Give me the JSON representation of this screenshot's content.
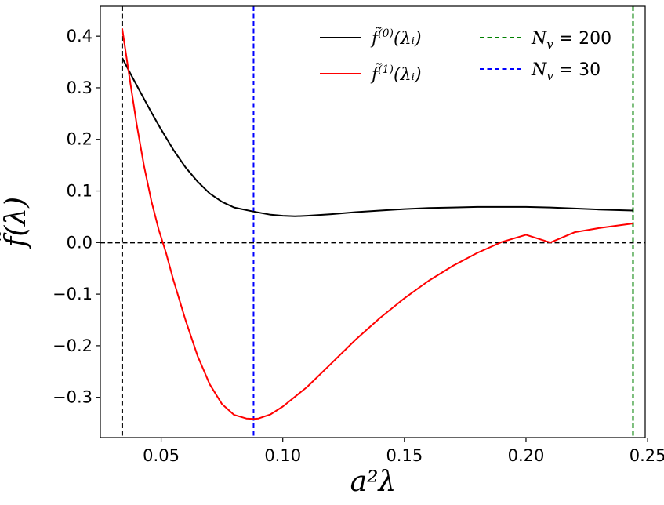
{
  "chart_data": {
    "type": "line",
    "xlabel": "a²λ",
    "ylabel": "f̃(λ)",
    "xlim": [
      0.025,
      0.249
    ],
    "ylim": [
      -0.378,
      0.458
    ],
    "xticks": [
      0.05,
      0.1,
      0.15,
      0.2,
      0.25
    ],
    "xtick_labels": [
      "0.05",
      "0.10",
      "0.15",
      "0.20",
      "0.25"
    ],
    "yticks": [
      -0.3,
      -0.2,
      -0.1,
      0.0,
      0.1,
      0.2,
      0.3,
      0.4
    ],
    "ytick_labels": [
      "−0.3",
      "−0.2",
      "−0.1",
      "0.0",
      "0.1",
      "0.2",
      "0.3",
      "0.4"
    ],
    "grid": false,
    "legend_position": "top-right",
    "series": [
      {
        "name": "f̃⁽⁰⁾(λᵢ)",
        "color": "#000000",
        "style": "solid",
        "x": [
          0.034,
          0.038,
          0.042,
          0.046,
          0.05,
          0.055,
          0.06,
          0.065,
          0.07,
          0.075,
          0.08,
          0.088,
          0.095,
          0.1,
          0.105,
          0.11,
          0.12,
          0.13,
          0.14,
          0.15,
          0.16,
          0.17,
          0.18,
          0.19,
          0.2,
          0.21,
          0.22,
          0.23,
          0.244
        ],
        "y": [
          0.358,
          0.322,
          0.287,
          0.252,
          0.219,
          0.18,
          0.146,
          0.118,
          0.095,
          0.079,
          0.068,
          0.06,
          0.054,
          0.052,
          0.051,
          0.052,
          0.055,
          0.059,
          0.062,
          0.065,
          0.067,
          0.068,
          0.069,
          0.069,
          0.069,
          0.068,
          0.066,
          0.064,
          0.062
        ]
      },
      {
        "name": "f̃⁽¹⁾(λᵢ)",
        "color": "#ff0000",
        "style": "solid",
        "x": [
          0.034,
          0.037,
          0.04,
          0.043,
          0.046,
          0.049,
          0.052,
          0.055,
          0.06,
          0.065,
          0.07,
          0.075,
          0.08,
          0.085,
          0.088,
          0.09,
          0.095,
          0.1,
          0.11,
          0.12,
          0.13,
          0.14,
          0.15,
          0.16,
          0.17,
          0.18,
          0.19,
          0.2,
          0.21,
          0.22,
          0.23,
          0.244
        ],
        "y": [
          0.415,
          0.32,
          0.228,
          0.148,
          0.08,
          0.025,
          -0.02,
          -0.072,
          -0.15,
          -0.22,
          -0.275,
          -0.313,
          -0.334,
          -0.341,
          -0.342,
          -0.341,
          -0.333,
          -0.318,
          -0.28,
          -0.234,
          -0.188,
          -0.146,
          -0.108,
          -0.074,
          -0.045,
          -0.02,
          0.001,
          0.015,
          -0.0,
          0.02,
          0.028,
          0.037
        ]
      }
    ],
    "reference_lines": [
      {
        "orientation": "vertical",
        "x": 0.034,
        "color": "#000000",
        "style": "dashed"
      },
      {
        "orientation": "vertical",
        "x": 0.088,
        "color": "#0000ff",
        "style": "dashed",
        "label": "N_v = 30"
      },
      {
        "orientation": "vertical",
        "x": 0.244,
        "color": "#008000",
        "style": "dashed",
        "label": "N_v = 200"
      },
      {
        "orientation": "horizontal",
        "y": 0.0,
        "color": "#000000",
        "style": "dashed"
      }
    ],
    "legend": [
      {
        "label_main": "f̃",
        "label_sup": "(0)",
        "label_arg": "(λᵢ)",
        "color": "#000000",
        "style": "solid"
      },
      {
        "label_main": "f̃",
        "label_sup": "(1)",
        "label_arg": "(λᵢ)",
        "color": "#ff0000",
        "style": "solid"
      },
      {
        "label_var": "N",
        "label_sub": "v",
        "label_eq": " = 200",
        "color": "#008000",
        "style": "dashed"
      },
      {
        "label_var": "N",
        "label_sub": "v",
        "label_eq": " = 30",
        "color": "#0000ff",
        "style": "dashed"
      }
    ]
  }
}
